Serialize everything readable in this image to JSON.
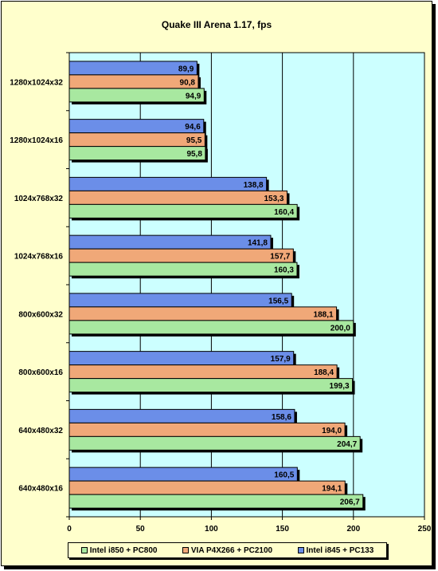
{
  "chart_data": {
    "type": "bar",
    "orientation": "horizontal",
    "title": "Quake III Arena 1.17, fps",
    "categories": [
      "1280x1024x32",
      "1280x1024x16",
      "1024x768x32",
      "1024x768x16",
      "800x600x32",
      "800x600x16",
      "640x480x32",
      "640x480x16"
    ],
    "series": [
      {
        "name": "Intel i845 + PC133",
        "color": "#6b8ee8",
        "values": [
          89.9,
          94.6,
          138.8,
          141.8,
          156.5,
          157.9,
          158.6,
          160.5
        ],
        "labels": [
          "89,9",
          "94,6",
          "138,8",
          "141,8",
          "156,5",
          "157,9",
          "158,6",
          "160,5"
        ]
      },
      {
        "name": "VIA P4X266 + PC2100",
        "color": "#f0a878",
        "values": [
          90.8,
          95.5,
          153.3,
          157.7,
          188.1,
          188.4,
          194.0,
          194.1
        ],
        "labels": [
          "90,8",
          "95,5",
          "153,3",
          "157,7",
          "188,1",
          "188,4",
          "194,0",
          "194,1"
        ]
      },
      {
        "name": "Intel i850 + PC800",
        "color": "#a8e8a0",
        "values": [
          94.9,
          95.8,
          160.4,
          160.3,
          200.0,
          199.3,
          204.7,
          206.7
        ],
        "labels": [
          "94,9",
          "95,8",
          "160,4",
          "160,3",
          "200,0",
          "199,3",
          "204,7",
          "206,7"
        ]
      }
    ],
    "xlim": [
      0,
      250
    ],
    "x_ticks": [
      0,
      50,
      100,
      150,
      200,
      250
    ],
    "x_tick_labels": [
      "0",
      "50",
      "100",
      "150",
      "200",
      "250"
    ],
    "grid": true,
    "plot_background": "#ccffff",
    "chart_background": "#ffffcc",
    "legend_position": "bottom",
    "legend_order": [
      "Intel i850 + PC800",
      "VIA P4X266 + PC2100",
      "Intel i845 + PC133"
    ]
  }
}
